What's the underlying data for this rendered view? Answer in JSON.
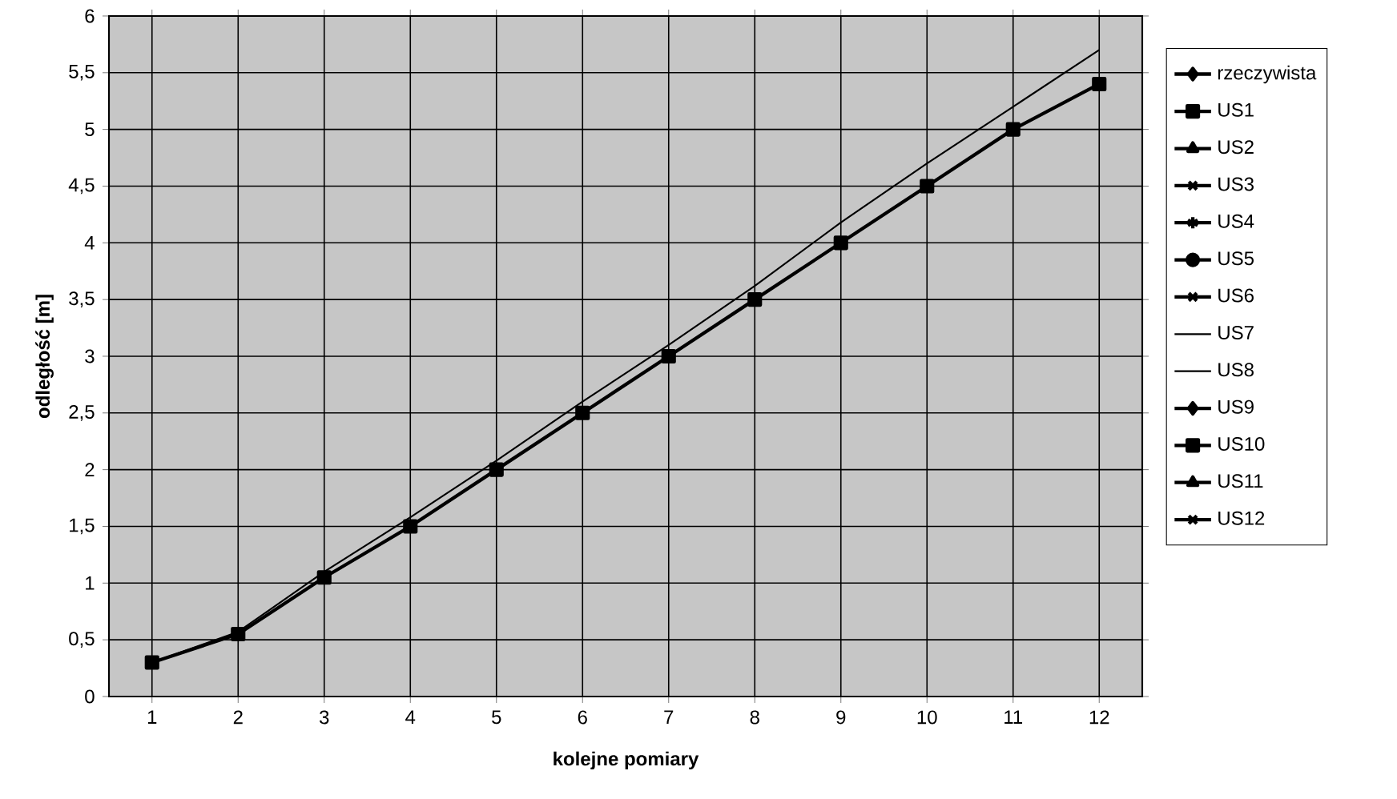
{
  "chart_data": {
    "type": "line",
    "xlabel": "kolejne pomiary",
    "ylabel": "odległość [m]",
    "categories": [
      "1",
      "2",
      "3",
      "4",
      "5",
      "6",
      "7",
      "8",
      "9",
      "10",
      "11",
      "12"
    ],
    "ylim": [
      0,
      6
    ],
    "yticks": [
      0,
      {
        "value": 0.5,
        "label": "0,5"
      },
      1,
      {
        "value": 1.5,
        "label": "1,5"
      },
      2,
      {
        "value": 2.5,
        "label": "2,5"
      },
      3,
      {
        "value": 3.5,
        "label": "3,5"
      },
      4,
      {
        "value": 4.5,
        "label": "4,5"
      },
      5,
      {
        "value": 5.5,
        "label": "5,5"
      },
      6
    ],
    "grid": true,
    "legend": "right",
    "series": [
      {
        "name": "rzeczywista",
        "color": "#000000",
        "marker": "diamond",
        "values": [
          null,
          null,
          null,
          null,
          null,
          null,
          null,
          null,
          null,
          null,
          null,
          null
        ]
      },
      {
        "name": "US1",
        "color": "#000000",
        "marker": "square",
        "values": [
          0.3,
          0.55,
          1.05,
          1.5,
          2.0,
          2.5,
          3.0,
          3.5,
          4.0,
          4.5,
          5.0,
          5.4
        ]
      },
      {
        "name": "US2",
        "color": "#000000",
        "marker": "triangle",
        "values": [
          null,
          null,
          null,
          null,
          null,
          null,
          null,
          null,
          null,
          null,
          null,
          null
        ]
      },
      {
        "name": "US3",
        "color": "#000000",
        "marker": "cross",
        "values": [
          null,
          null,
          null,
          null,
          null,
          null,
          null,
          null,
          null,
          null,
          null,
          null
        ]
      },
      {
        "name": "US4",
        "color": "#000000",
        "marker": "star",
        "values": [
          null,
          null,
          null,
          null,
          null,
          null,
          null,
          null,
          null,
          null,
          null,
          null
        ]
      },
      {
        "name": "US5",
        "color": "#000000",
        "marker": "circle",
        "values": [
          null,
          null,
          null,
          null,
          null,
          null,
          null,
          null,
          null,
          null,
          null,
          null
        ]
      },
      {
        "name": "US6",
        "color": "#000000",
        "marker": "cross",
        "values": [
          null,
          null,
          null,
          null,
          null,
          null,
          null,
          null,
          null,
          null,
          null,
          null
        ]
      },
      {
        "name": "US7",
        "color": "#000000",
        "marker": "none",
        "values": [
          0.3,
          0.57,
          1.1,
          1.58,
          2.08,
          2.6,
          3.1,
          3.62,
          4.18,
          4.7,
          5.2,
          5.7
        ]
      },
      {
        "name": "US8",
        "color": "#000000",
        "marker": "none",
        "values": [
          null,
          null,
          null,
          null,
          null,
          null,
          null,
          null,
          null,
          null,
          null,
          null
        ]
      },
      {
        "name": "US9",
        "color": "#000000",
        "marker": "diamond",
        "values": [
          null,
          null,
          null,
          null,
          null,
          null,
          null,
          null,
          null,
          null,
          null,
          null
        ]
      },
      {
        "name": "US10",
        "color": "#000000",
        "marker": "square",
        "values": [
          null,
          null,
          null,
          null,
          null,
          null,
          null,
          null,
          null,
          null,
          null,
          null
        ]
      },
      {
        "name": "US11",
        "color": "#000000",
        "marker": "triangle",
        "values": [
          null,
          null,
          null,
          null,
          null,
          null,
          null,
          null,
          null,
          null,
          null,
          null
        ]
      },
      {
        "name": "US12",
        "color": "#000000",
        "marker": "cross",
        "values": [
          null,
          null,
          null,
          null,
          null,
          null,
          null,
          null,
          null,
          null,
          null,
          null
        ]
      }
    ]
  }
}
